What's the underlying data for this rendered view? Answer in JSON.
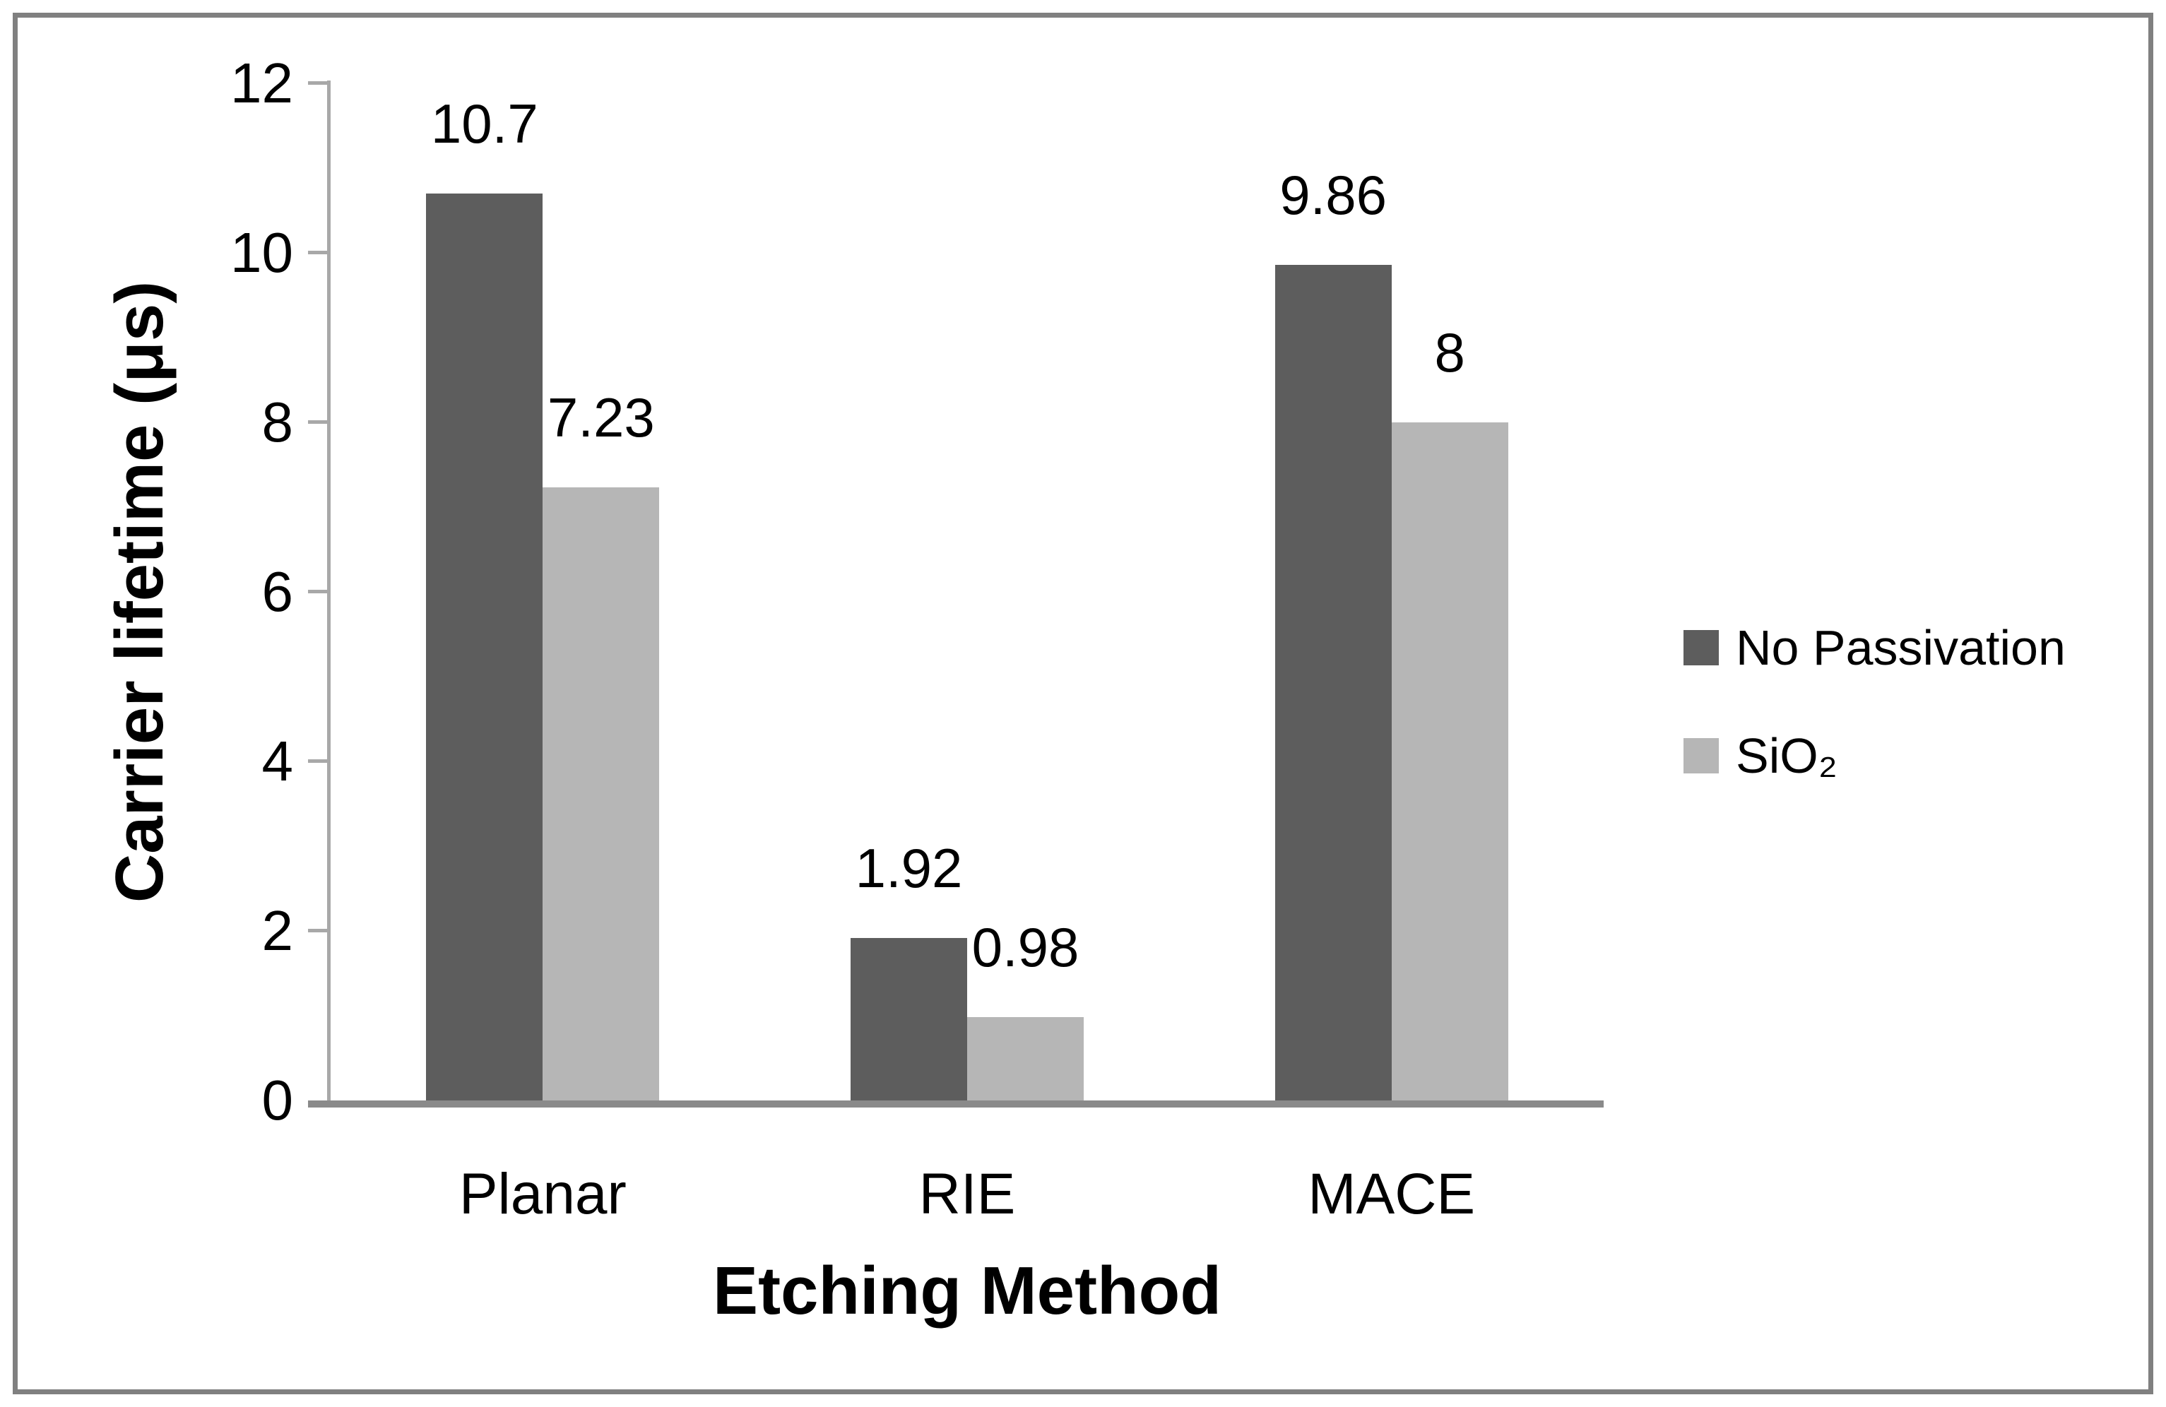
{
  "figure": {
    "border_color": "#808080",
    "background": "#ffffff"
  },
  "chart_data": {
    "type": "bar",
    "title": "",
    "categories": [
      "Planar",
      "RIE",
      "MACE"
    ],
    "series": [
      {
        "name": "No Passivation",
        "color": "#5d5d5d",
        "values": [
          10.7,
          1.92,
          9.86
        ],
        "labels": [
          "10.7",
          "1.92",
          "9.86"
        ]
      },
      {
        "name": "SiO₂",
        "color": "#b6b6b6",
        "values": [
          7.23,
          0.98,
          8
        ],
        "labels": [
          "7.23",
          "0.98",
          "8"
        ]
      }
    ],
    "xlabel": "Etching Method",
    "ylabel": "Carrier lifetime (μs)",
    "ylim": [
      0,
      12
    ],
    "yticks": [
      "0",
      "2",
      "4",
      "6",
      "8",
      "10",
      "12"
    ],
    "grid": false,
    "data_labels": true,
    "legend_position": "right",
    "axis_line_color": "#a8a8a8",
    "baseline_color": "#8a8a8a",
    "text_color": "#000000"
  }
}
